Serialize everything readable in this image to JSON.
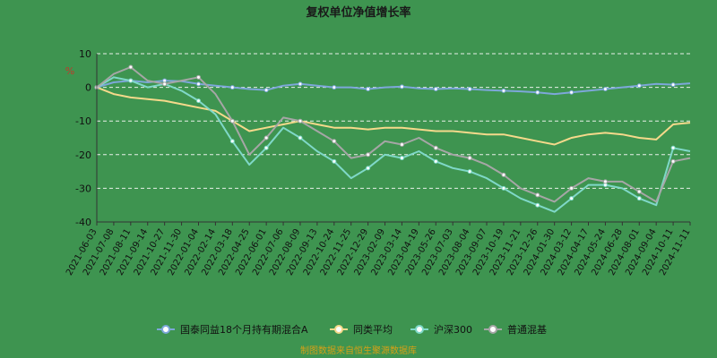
{
  "chart_data": {
    "type": "line",
    "title": "复权单位净值增长率",
    "ylabel": "%",
    "ylim": [
      -40,
      10
    ],
    "yticks": [
      10,
      0,
      -10,
      -20,
      -30,
      -40
    ],
    "grid": true,
    "legend_position": "bottom",
    "footer": "制图数据来自恒生聚源数据库",
    "x": [
      "2021-06-03",
      "2021-07-08",
      "2021-08-11",
      "2021-09-14",
      "2021-10-27",
      "2021-11-30",
      "2022-01-04",
      "2022-02-14",
      "2022-03-18",
      "2022-04-25",
      "2022-06-01",
      "2022-07-06",
      "2022-08-09",
      "2022-09-13",
      "2022-10-24",
      "2022-11-25",
      "2022-12-29",
      "2023-02-09",
      "2023-03-14",
      "2023-04-19",
      "2023-05-26",
      "2023-07-03",
      "2023-08-04",
      "2023-09-07",
      "2023-10-19",
      "2023-11-21",
      "2023-12-26",
      "2024-01-30",
      "2024-03-12",
      "2024-04-17",
      "2024-05-24",
      "2024-06-28",
      "2024-08-01",
      "2024-09-04",
      "2024-10-11",
      "2024-11-11"
    ],
    "series": [
      {
        "name": "国泰同益18个月持有期混合A",
        "color": "#7da7d9",
        "marker": true,
        "values": [
          0,
          1.5,
          2,
          1.5,
          2,
          1.8,
          1,
          0.5,
          0,
          -0.5,
          -0.8,
          0.5,
          1,
          0.5,
          0,
          0,
          -0.5,
          0,
          0.2,
          -0.3,
          -0.5,
          -0.3,
          -0.5,
          -0.8,
          -1,
          -1.2,
          -1.5,
          -2,
          -1.5,
          -1,
          -0.5,
          0,
          0.5,
          1,
          0.8,
          1.2
        ]
      },
      {
        "name": "同类平均",
        "color": "#f5d98b",
        "marker": false,
        "values": [
          0,
          -2,
          -3,
          -3.5,
          -4,
          -5,
          -6,
          -7,
          -10,
          -13,
          -12,
          -11,
          -10,
          -11,
          -12,
          -12,
          -12.5,
          -12,
          -12,
          -12.5,
          -13,
          -13,
          -13.5,
          -14,
          -14,
          -15,
          -16,
          -17,
          -15,
          -14,
          -13.5,
          -14,
          -15,
          -15.5,
          -11,
          -10.5
        ]
      },
      {
        "name": "沪深300",
        "color": "#7fd8c8",
        "marker": true,
        "values": [
          0,
          3,
          2,
          0,
          1,
          -1,
          -4,
          -8,
          -16,
          -23,
          -18,
          -12,
          -15,
          -19,
          -22,
          -27,
          -24,
          -20,
          -21,
          -19,
          -22,
          -24,
          -25,
          -27,
          -30,
          -33,
          -35,
          -37,
          -33,
          -29,
          -29,
          -30,
          -33,
          -35,
          -18,
          -19
        ]
      },
      {
        "name": "普通混基",
        "color": "#a6a6a6",
        "marker": true,
        "values": [
          0,
          4,
          6,
          2,
          1,
          2,
          3,
          -2,
          -10,
          -20,
          -15,
          -9,
          -10,
          -13,
          -16,
          -21,
          -20,
          -16,
          -17,
          -15,
          -18,
          -20,
          -21,
          -23,
          -26,
          -30,
          -32,
          -34,
          -30,
          -27,
          -28,
          -28,
          -31,
          -34,
          -22,
          -21
        ]
      }
    ]
  }
}
